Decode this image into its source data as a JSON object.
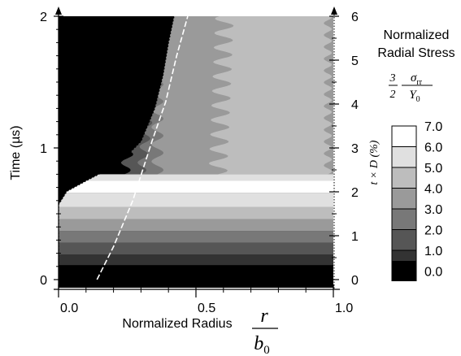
{
  "chart_data": {
    "type": "heatmap",
    "xlabel": "Normalized Radius",
    "xlabel_fraction": {
      "num": "r",
      "den": "b",
      "den_sub": "0"
    },
    "ylabel_left": "Time (µs)",
    "ylabel_right": "t × D  (%)",
    "colorbar_title": [
      "Normalized",
      "Radial Stress"
    ],
    "colorbar_formula": {
      "coef_num": "3",
      "coef_den": "2",
      "num": "σ",
      "num_sub": "rr",
      "den": "Y",
      "den_sub": "0"
    },
    "x_ticks": [
      {
        "value": 0.0,
        "label": "0.0"
      },
      {
        "value": 0.5,
        "label": "0.5"
      },
      {
        "value": 1.0,
        "label": "1.0"
      }
    ],
    "xlim": [
      0,
      1.0
    ],
    "y_left_ticks": [
      {
        "value": 0,
        "label": "0"
      },
      {
        "value": 1,
        "label": "1"
      },
      {
        "value": 2,
        "label": "2"
      }
    ],
    "ylim_left": [
      0,
      2
    ],
    "y_right_ticks": [
      {
        "value": 0,
        "label": "0"
      },
      {
        "value": 1,
        "label": "1"
      },
      {
        "value": 2,
        "label": "2"
      },
      {
        "value": 3,
        "label": "3"
      },
      {
        "value": 4,
        "label": "4"
      },
      {
        "value": 5,
        "label": "5"
      },
      {
        "value": 6,
        "label": "6"
      }
    ],
    "ylim_right": [
      0,
      6
    ],
    "colorbar": {
      "levels": [
        "7.0",
        "6.0",
        "5.0",
        "4.0",
        "3.0",
        "2.0",
        "1.0",
        "0.0"
      ],
      "colors": [
        "#ffffff",
        "#e0e0e0",
        "#bdbdbd",
        "#9a9a9a",
        "#787878",
        "#565656",
        "#333333",
        "#000000"
      ]
    },
    "lines": [
      {
        "style": "dashed",
        "color": "#ffffff",
        "points": [
          [
            0.14,
            0.0
          ],
          [
            0.2,
            0.25
          ],
          [
            0.27,
            0.6
          ],
          [
            0.34,
            1.05
          ],
          [
            0.39,
            1.35
          ],
          [
            0.43,
            1.7
          ],
          [
            0.47,
            2.0
          ]
        ]
      },
      {
        "style": "dotted",
        "color": "#000000",
        "points": [
          [
            0.0,
            0.0
          ],
          [
            0.0,
            0.57
          ],
          [
            0.03,
            0.67
          ],
          [
            0.1,
            0.75
          ],
          [
            0.22,
            0.88
          ],
          [
            0.3,
            1.05
          ],
          [
            0.35,
            1.3
          ],
          [
            0.38,
            1.55
          ],
          [
            0.4,
            1.8
          ],
          [
            0.42,
            2.0
          ]
        ]
      }
    ],
    "grid": false
  }
}
